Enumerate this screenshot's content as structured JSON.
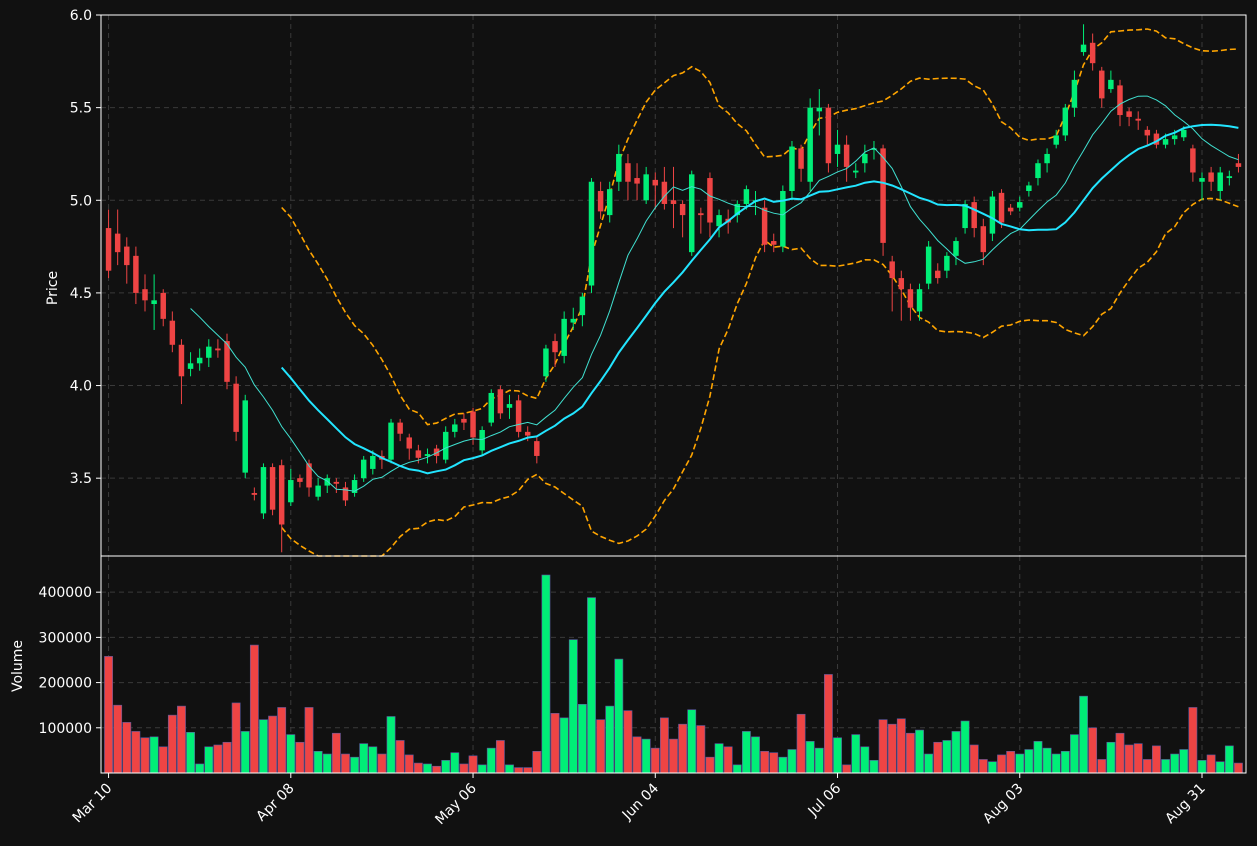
{
  "theme": {
    "background": "#111111",
    "up_color": "#00ee77",
    "down_color": "#ee4444",
    "grid_color": "#3a3a3a",
    "axis_color": "#ffffff",
    "ma_fast_color": "#40e0d0",
    "ma_slow_color": "#22e5ff",
    "band_color": "#ffa500"
  },
  "chart_data": {
    "type": "candlestick",
    "price_panel": {
      "ylabel": "Price",
      "ylim": [
        3.08,
        6.0
      ],
      "yticks": [
        "3.5",
        "4.0",
        "4.5",
        "5.0",
        "5.5",
        "6.0"
      ],
      "grid": true,
      "overlays": [
        "moving average (thin)",
        "moving average (thick)",
        "bollinger bands (dashed)"
      ]
    },
    "volume_panel": {
      "ylabel": "Volume",
      "ylim": [
        0,
        480000
      ],
      "yticks": [
        "100000",
        "200000",
        "300000",
        "400000"
      ],
      "grid": true
    },
    "x_axis": {
      "start_date": "Mar 10",
      "tick_labels": [
        "Mar 10",
        "Apr 08",
        "May 06",
        "Jun 04",
        "Jul 06",
        "Aug 03",
        "Aug 31"
      ],
      "tick_index": [
        0,
        20,
        40,
        60,
        80,
        100,
        120
      ]
    },
    "candles": [
      [
        4.85,
        4.62,
        4.95,
        4.58,
        258000
      ],
      [
        4.82,
        4.72,
        4.95,
        4.65,
        150000
      ],
      [
        4.75,
        4.65,
        4.8,
        4.55,
        112000
      ],
      [
        4.7,
        4.5,
        4.75,
        4.44,
        92000
      ],
      [
        4.52,
        4.46,
        4.6,
        4.4,
        78000
      ],
      [
        4.44,
        4.46,
        4.6,
        4.3,
        80000
      ],
      [
        4.5,
        4.36,
        4.52,
        4.32,
        58000
      ],
      [
        4.35,
        4.22,
        4.4,
        4.18,
        128000
      ],
      [
        4.22,
        4.05,
        4.25,
        3.9,
        148000
      ],
      [
        4.09,
        4.12,
        4.18,
        4.05,
        90000
      ],
      [
        4.12,
        4.15,
        4.2,
        4.08,
        20000
      ],
      [
        4.15,
        4.21,
        4.25,
        4.1,
        58000
      ],
      [
        4.2,
        4.19,
        4.25,
        4.15,
        62000
      ],
      [
        4.24,
        4.02,
        4.28,
        3.98,
        68000
      ],
      [
        4.01,
        3.75,
        4.05,
        3.7,
        155000
      ],
      [
        3.53,
        3.92,
        3.95,
        3.5,
        92000
      ],
      [
        3.42,
        3.41,
        3.45,
        3.38,
        283000
      ],
      [
        3.31,
        3.56,
        3.58,
        3.28,
        118000
      ],
      [
        3.56,
        3.33,
        3.58,
        3.3,
        126000
      ],
      [
        3.57,
        3.25,
        3.6,
        3.1,
        145000
      ],
      [
        3.37,
        3.49,
        3.55,
        3.35,
        85000
      ],
      [
        3.5,
        3.48,
        3.52,
        3.45,
        68000
      ],
      [
        3.58,
        3.45,
        3.6,
        3.4,
        145000
      ],
      [
        3.4,
        3.46,
        3.5,
        3.38,
        48000
      ],
      [
        3.46,
        3.5,
        3.52,
        3.42,
        42000
      ],
      [
        3.48,
        3.47,
        3.5,
        3.42,
        88000
      ],
      [
        3.45,
        3.38,
        3.48,
        3.35,
        42000
      ],
      [
        3.42,
        3.49,
        3.52,
        3.4,
        35000
      ],
      [
        3.5,
        3.6,
        3.62,
        3.48,
        65000
      ],
      [
        3.55,
        3.62,
        3.65,
        3.52,
        58000
      ],
      [
        3.62,
        3.6,
        3.65,
        3.55,
        42000
      ],
      [
        3.6,
        3.8,
        3.82,
        3.58,
        125000
      ],
      [
        3.8,
        3.74,
        3.82,
        3.7,
        72000
      ],
      [
        3.72,
        3.66,
        3.74,
        3.6,
        40000
      ],
      [
        3.65,
        3.61,
        3.68,
        3.58,
        22000
      ],
      [
        3.62,
        3.63,
        3.66,
        3.58,
        20000
      ],
      [
        3.66,
        3.62,
        3.68,
        3.58,
        15000
      ],
      [
        3.6,
        3.75,
        3.78,
        3.58,
        28000
      ],
      [
        3.75,
        3.79,
        3.82,
        3.72,
        45000
      ],
      [
        3.82,
        3.8,
        3.85,
        3.76,
        20000
      ],
      [
        3.86,
        3.72,
        3.88,
        3.68,
        38000
      ],
      [
        3.65,
        3.76,
        3.78,
        3.62,
        18000
      ],
      [
        3.8,
        3.96,
        3.98,
        3.78,
        55000
      ],
      [
        3.98,
        3.85,
        4.0,
        3.82,
        72000
      ],
      [
        3.88,
        3.9,
        3.95,
        3.82,
        18000
      ],
      [
        3.92,
        3.75,
        3.95,
        3.72,
        12000
      ],
      [
        3.75,
        3.73,
        3.78,
        3.7,
        12000
      ],
      [
        3.7,
        3.62,
        3.72,
        3.58,
        48000
      ],
      [
        4.05,
        4.2,
        4.22,
        4.02,
        438000
      ],
      [
        4.24,
        4.18,
        4.28,
        4.1,
        132000
      ],
      [
        4.16,
        4.36,
        4.4,
        4.12,
        122000
      ],
      [
        4.34,
        4.36,
        4.42,
        4.3,
        295000
      ],
      [
        4.38,
        4.48,
        4.5,
        4.32,
        152000
      ],
      [
        4.54,
        5.1,
        5.12,
        4.5,
        388000
      ],
      [
        5.05,
        4.94,
        5.1,
        4.9,
        118000
      ],
      [
        4.92,
        5.06,
        5.1,
        4.88,
        148000
      ],
      [
        5.1,
        5.25,
        5.3,
        5.05,
        252000
      ],
      [
        5.2,
        5.1,
        5.25,
        5.0,
        138000
      ],
      [
        5.12,
        5.09,
        5.2,
        5.0,
        80000
      ],
      [
        5.0,
        5.14,
        5.18,
        4.98,
        75000
      ],
      [
        5.11,
        5.08,
        5.15,
        4.95,
        55000
      ],
      [
        5.1,
        4.98,
        5.18,
        4.95,
        122000
      ],
      [
        5.0,
        4.98,
        5.18,
        4.85,
        75000
      ],
      [
        4.98,
        4.92,
        5.0,
        4.8,
        108000
      ],
      [
        4.72,
        5.14,
        5.16,
        4.7,
        140000
      ],
      [
        4.93,
        4.92,
        4.96,
        4.82,
        105000
      ],
      [
        5.12,
        4.88,
        5.15,
        4.8,
        35000
      ],
      [
        4.86,
        4.92,
        4.95,
        4.8,
        65000
      ],
      [
        4.9,
        4.88,
        4.95,
        4.82,
        58000
      ],
      [
        4.92,
        4.98,
        5.0,
        4.88,
        18000
      ],
      [
        4.98,
        5.06,
        5.08,
        4.95,
        92000
      ],
      [
        5.0,
        5.0,
        5.05,
        4.92,
        80000
      ],
      [
        4.96,
        4.76,
        5.0,
        4.72,
        48000
      ],
      [
        4.78,
        4.76,
        4.82,
        4.72,
        45000
      ],
      [
        4.75,
        5.05,
        5.08,
        4.72,
        35000
      ],
      [
        5.05,
        5.29,
        5.32,
        5.0,
        52000
      ],
      [
        5.28,
        5.17,
        5.3,
        5.1,
        130000
      ],
      [
        5.1,
        5.5,
        5.55,
        5.05,
        70000
      ],
      [
        5.48,
        5.5,
        5.6,
        5.35,
        55000
      ],
      [
        5.5,
        5.2,
        5.52,
        5.15,
        218000
      ],
      [
        5.25,
        5.3,
        5.38,
        5.18,
        78000
      ],
      [
        5.3,
        5.18,
        5.35,
        5.1,
        18000
      ],
      [
        5.15,
        5.16,
        5.2,
        5.12,
        85000
      ],
      [
        5.2,
        5.25,
        5.3,
        5.15,
        58000
      ],
      [
        5.28,
        5.28,
        5.32,
        5.22,
        28000
      ],
      [
        5.28,
        4.77,
        5.3,
        4.7,
        118000
      ],
      [
        4.67,
        4.58,
        4.7,
        4.4,
        108000
      ],
      [
        4.58,
        4.52,
        4.62,
        4.35,
        120000
      ],
      [
        4.52,
        4.42,
        4.55,
        4.35,
        88000
      ],
      [
        4.4,
        4.52,
        4.55,
        4.35,
        95000
      ],
      [
        4.55,
        4.75,
        4.78,
        4.52,
        42000
      ],
      [
        4.62,
        4.58,
        4.66,
        4.55,
        68000
      ],
      [
        4.62,
        4.7,
        4.72,
        4.58,
        72000
      ],
      [
        4.7,
        4.78,
        4.8,
        4.65,
        92000
      ],
      [
        4.85,
        4.98,
        5.0,
        4.82,
        115000
      ],
      [
        4.99,
        4.85,
        5.02,
        4.8,
        62000
      ],
      [
        4.86,
        4.72,
        4.9,
        4.65,
        30000
      ],
      [
        4.82,
        5.02,
        5.05,
        4.78,
        25000
      ],
      [
        5.04,
        4.88,
        5.06,
        4.85,
        40000
      ],
      [
        4.96,
        4.94,
        4.98,
        4.92,
        48000
      ],
      [
        4.96,
        4.99,
        5.02,
        4.94,
        42000
      ],
      [
        5.05,
        5.08,
        5.1,
        5.02,
        52000
      ],
      [
        5.12,
        5.2,
        5.22,
        5.08,
        70000
      ],
      [
        5.2,
        5.25,
        5.28,
        5.15,
        55000
      ],
      [
        5.3,
        5.35,
        5.38,
        5.28,
        42000
      ],
      [
        5.35,
        5.5,
        5.52,
        5.32,
        48000
      ],
      [
        5.5,
        5.65,
        5.7,
        5.45,
        85000
      ],
      [
        5.8,
        5.84,
        5.95,
        5.78,
        170000
      ],
      [
        5.85,
        5.74,
        5.9,
        5.7,
        100000
      ],
      [
        5.7,
        5.55,
        5.72,
        5.5,
        30000
      ],
      [
        5.6,
        5.65,
        5.7,
        5.58,
        68000
      ],
      [
        5.62,
        5.46,
        5.65,
        5.4,
        88000
      ],
      [
        5.48,
        5.45,
        5.5,
        5.4,
        62000
      ],
      [
        5.44,
        5.43,
        5.48,
        5.38,
        65000
      ],
      [
        5.38,
        5.35,
        5.4,
        5.3,
        30000
      ],
      [
        5.36,
        5.3,
        5.38,
        5.28,
        60000
      ],
      [
        5.3,
        5.33,
        5.36,
        5.28,
        30000
      ],
      [
        5.33,
        5.35,
        5.38,
        5.3,
        42000
      ],
      [
        5.34,
        5.38,
        5.4,
        5.32,
        52000
      ],
      [
        5.28,
        5.15,
        5.3,
        5.1,
        145000
      ],
      [
        5.1,
        5.12,
        5.15,
        5.0,
        28000
      ],
      [
        5.15,
        5.1,
        5.18,
        5.05,
        40000
      ],
      [
        5.05,
        5.15,
        5.18,
        5.0,
        25000
      ],
      [
        5.12,
        5.13,
        5.16,
        5.08,
        60000
      ],
      [
        5.2,
        5.18,
        5.25,
        5.15,
        22000
      ]
    ]
  }
}
